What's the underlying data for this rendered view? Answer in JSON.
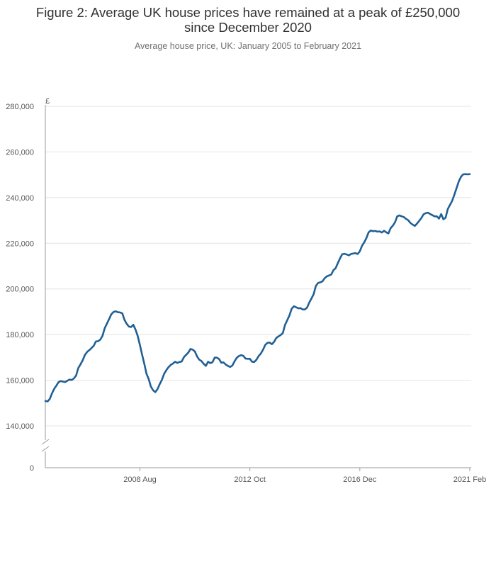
{
  "chart_data": {
    "type": "line",
    "title": "Figure 2: Average UK house prices have remained at a peak of £250,000 since December 2020",
    "title_lines": [
      "Figure 2: Average UK house prices have remained at a peak of £250,000",
      "since December 2020"
    ],
    "subtitle": "Average house price, UK: January 2005 to February 2021",
    "y_unit": "£",
    "xlabel": "",
    "ylabel": "",
    "ylim": [
      140000,
      280000
    ],
    "y_ticks": [
      0,
      140000,
      160000,
      180000,
      200000,
      220000,
      240000,
      260000,
      280000
    ],
    "y_tick_labels": [
      "0",
      "140,000",
      "160,000",
      "180,000",
      "200,000",
      "220,000",
      "240,000",
      "260,000",
      "280,000"
    ],
    "y_axis_break": true,
    "x_range": [
      "2005-01",
      "2021-02"
    ],
    "x_tick_dates": [
      "2008-08",
      "2012-10",
      "2016-12",
      "2021-02"
    ],
    "x_tick_labels": [
      "2008 Aug",
      "2012 Oct",
      "2016 Dec",
      "2021 Feb"
    ],
    "grid": true,
    "line_color": "#206095",
    "series": [
      {
        "x": [
          "2005-01",
          "2005-02",
          "2005-03",
          "2005-04",
          "2005-05",
          "2005-06",
          "2005-07",
          "2005-08",
          "2005-09",
          "2005-10",
          "2005-11",
          "2005-12",
          "2006-01",
          "2006-02",
          "2006-03",
          "2006-04",
          "2006-05",
          "2006-06",
          "2006-07",
          "2006-08",
          "2006-09",
          "2006-10",
          "2006-11",
          "2006-12",
          "2007-01",
          "2007-02",
          "2007-03",
          "2007-04",
          "2007-05",
          "2007-06",
          "2007-07",
          "2007-08",
          "2007-09",
          "2007-10",
          "2007-11",
          "2007-12",
          "2008-01",
          "2008-02",
          "2008-03",
          "2008-04",
          "2008-05",
          "2008-06",
          "2008-07",
          "2008-08",
          "2008-09",
          "2008-10",
          "2008-11",
          "2008-12",
          "2009-01",
          "2009-02",
          "2009-03",
          "2009-04",
          "2009-05",
          "2009-06",
          "2009-07",
          "2009-08",
          "2009-09",
          "2009-10",
          "2009-11",
          "2009-12",
          "2010-01",
          "2010-02",
          "2010-03",
          "2010-04",
          "2010-05",
          "2010-06",
          "2010-07",
          "2010-08",
          "2010-09",
          "2010-10",
          "2010-11",
          "2010-12",
          "2011-01",
          "2011-02",
          "2011-03",
          "2011-04",
          "2011-05",
          "2011-06",
          "2011-07",
          "2011-08",
          "2011-09",
          "2011-10",
          "2011-11",
          "2011-12",
          "2012-01",
          "2012-02",
          "2012-03",
          "2012-04",
          "2012-05",
          "2012-06",
          "2012-07",
          "2012-08",
          "2012-09",
          "2012-10",
          "2012-11",
          "2012-12",
          "2013-01",
          "2013-02",
          "2013-03",
          "2013-04",
          "2013-05",
          "2013-06",
          "2013-07",
          "2013-08",
          "2013-09",
          "2013-10",
          "2013-11",
          "2013-12",
          "2014-01",
          "2014-02",
          "2014-03",
          "2014-04",
          "2014-05",
          "2014-06",
          "2014-07",
          "2014-08",
          "2014-09",
          "2014-10",
          "2014-11",
          "2014-12",
          "2015-01",
          "2015-02",
          "2015-03",
          "2015-04",
          "2015-05",
          "2015-06",
          "2015-07",
          "2015-08",
          "2015-09",
          "2015-10",
          "2015-11",
          "2015-12",
          "2016-01",
          "2016-02",
          "2016-03",
          "2016-04",
          "2016-05",
          "2016-06",
          "2016-07",
          "2016-08",
          "2016-09",
          "2016-10",
          "2016-11",
          "2016-12",
          "2017-01",
          "2017-02",
          "2017-03",
          "2017-04",
          "2017-05",
          "2017-06",
          "2017-07",
          "2017-08",
          "2017-09",
          "2017-10",
          "2017-11",
          "2017-12",
          "2018-01",
          "2018-02",
          "2018-03",
          "2018-04",
          "2018-05",
          "2018-06",
          "2018-07",
          "2018-08",
          "2018-09",
          "2018-10",
          "2018-11",
          "2018-12",
          "2019-01",
          "2019-02",
          "2019-03",
          "2019-04",
          "2019-05",
          "2019-06",
          "2019-07",
          "2019-08",
          "2019-09",
          "2019-10",
          "2019-11",
          "2019-12",
          "2020-01",
          "2020-02",
          "2020-03",
          "2020-04",
          "2020-05",
          "2020-06",
          "2020-07",
          "2020-08",
          "2020-09",
          "2020-10",
          "2020-11",
          "2020-12",
          "2021-01",
          "2021-02"
        ],
        "values": [
          150900,
          150700,
          151800,
          154200,
          156200,
          157600,
          159200,
          159600,
          159400,
          159200,
          159800,
          160300,
          160100,
          160800,
          162100,
          165400,
          167000,
          168800,
          171100,
          172400,
          173200,
          174100,
          175100,
          177000,
          177100,
          177800,
          179500,
          182800,
          184800,
          186800,
          188900,
          189900,
          190200,
          189800,
          189700,
          189300,
          186400,
          184700,
          183500,
          183300,
          184300,
          182200,
          179400,
          175400,
          171200,
          167200,
          162800,
          160500,
          157200,
          155600,
          154800,
          156100,
          158300,
          160200,
          162800,
          164400,
          165700,
          166700,
          167300,
          168100,
          167600,
          168000,
          168200,
          170100,
          171100,
          172100,
          173700,
          173400,
          172600,
          170400,
          169000,
          168400,
          167200,
          166300,
          168100,
          167500,
          167900,
          169900,
          169900,
          169300,
          167700,
          167800,
          166900,
          166300,
          165800,
          166400,
          168200,
          169800,
          170600,
          171000,
          170700,
          169500,
          169400,
          169400,
          168100,
          168000,
          169000,
          170600,
          171700,
          173400,
          175500,
          176400,
          176500,
          175800,
          176800,
          178500,
          179200,
          179800,
          180700,
          184300,
          186300,
          188400,
          191300,
          192400,
          192000,
          191500,
          191600,
          191000,
          191000,
          191800,
          194000,
          195800,
          197700,
          201300,
          202600,
          202900,
          203300,
          204700,
          205500,
          205900,
          206300,
          208200,
          209100,
          211300,
          213400,
          215200,
          215400,
          215100,
          214700,
          215300,
          215500,
          215700,
          215300,
          216500,
          218900,
          220400,
          222300,
          224800,
          225600,
          225300,
          225400,
          225100,
          225200,
          224700,
          225500,
          224800,
          224300,
          226600,
          227700,
          229200,
          231800,
          232200,
          231800,
          231500,
          230700,
          230100,
          228900,
          228200,
          227600,
          228600,
          229800,
          231100,
          232700,
          233200,
          233400,
          232800,
          232300,
          231800,
          231800,
          230800,
          232800,
          230500,
          231200,
          235000,
          236800,
          238600,
          241300,
          244200,
          247100,
          249100,
          250200,
          250300,
          250200,
          250300
        ]
      }
    ]
  }
}
